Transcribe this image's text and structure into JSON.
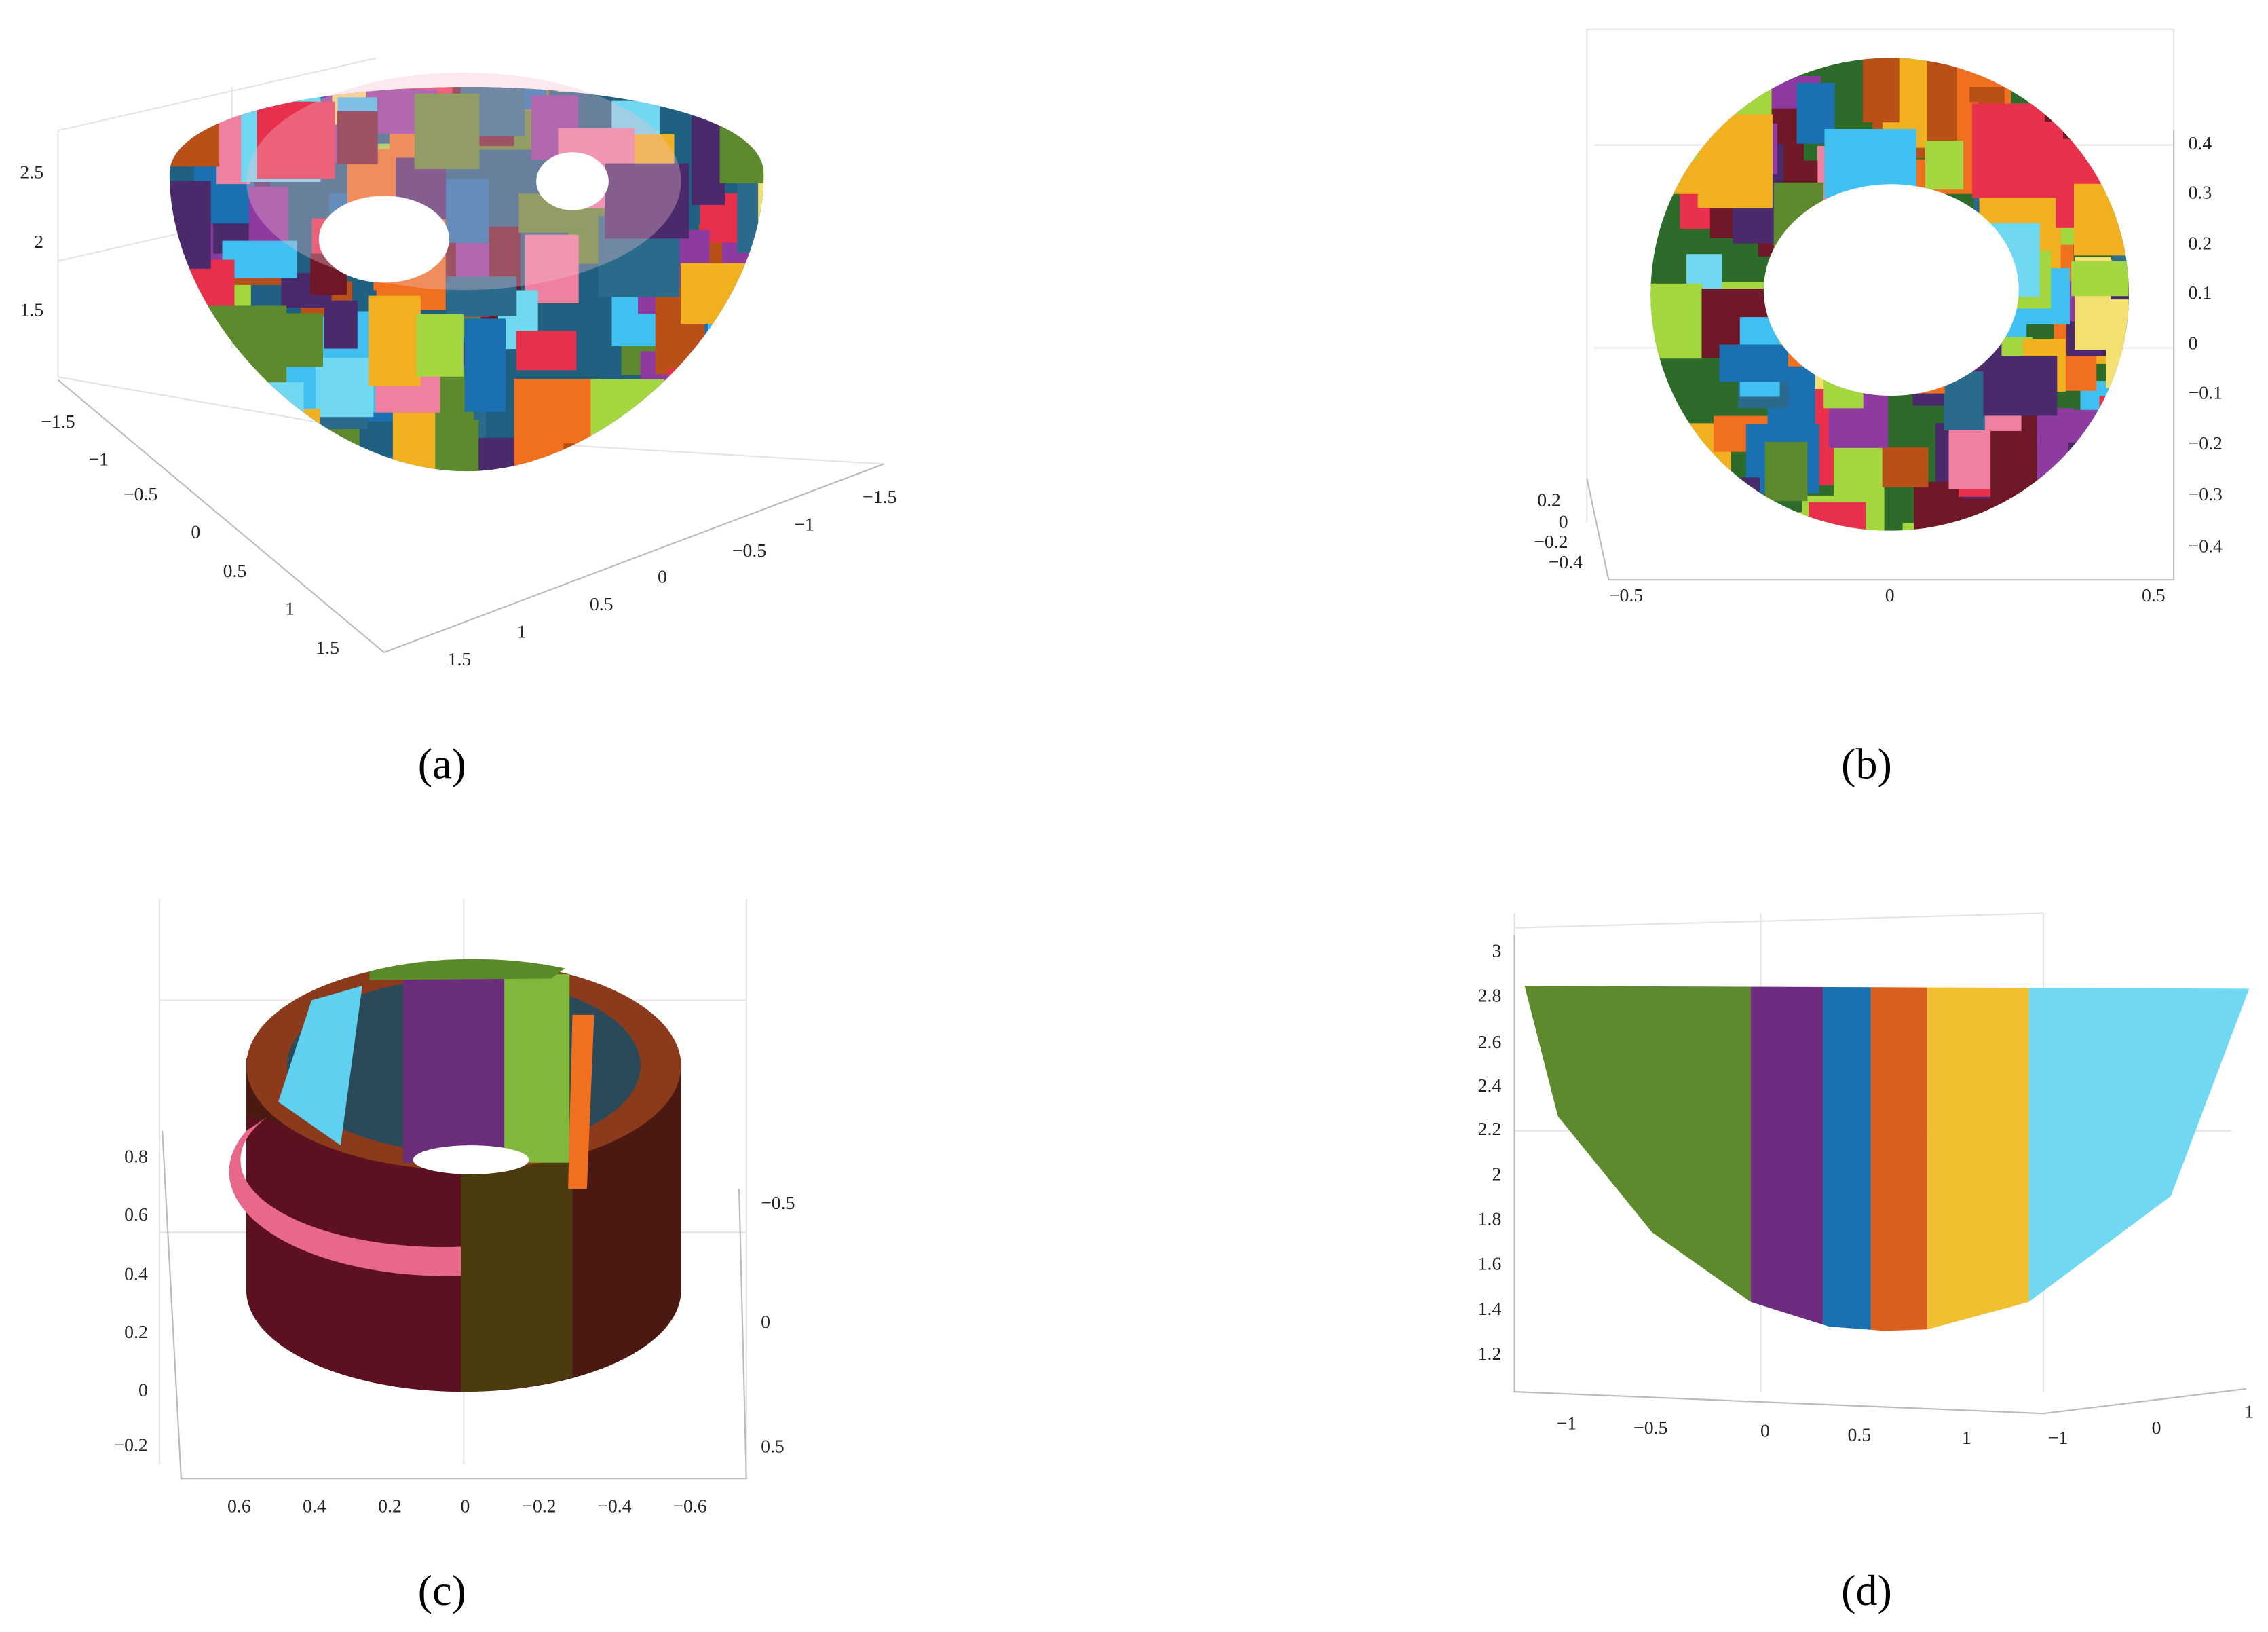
{
  "panels": [
    {
      "caption": "(a)",
      "z_ticks": [
        "2.5",
        "2",
        "1.5"
      ],
      "x_ticks": [
        "−1.5",
        "−1",
        "−0.5",
        "0",
        "0.5",
        "1",
        "1.5"
      ],
      "y_ticks": [
        "−1.5",
        "−1",
        "−0.5",
        "0",
        "0.5",
        "1",
        "1.5"
      ]
    },
    {
      "caption": "(b)",
      "z_ticks": [
        "0.4",
        "0.3",
        "0.2",
        "0.1",
        "0",
        "−0.1",
        "−0.2",
        "−0.3",
        "−0.4"
      ],
      "y_ticks": [
        "0.2",
        "0",
        "−0.2",
        "−0.4"
      ],
      "x_ticks": [
        "−0.5",
        "0",
        "0.5"
      ]
    },
    {
      "caption": "(c)",
      "z_ticks": [
        "0.8",
        "0.6",
        "0.4",
        "0.2",
        "0",
        "−0.2"
      ],
      "y_ticks": [
        "−0.5",
        "0",
        "0.5"
      ],
      "x_ticks": [
        "0.6",
        "0.4",
        "0.2",
        "0",
        "−0.2",
        "−0.4",
        "−0.6"
      ]
    },
    {
      "caption": "(d)",
      "z_ticks": [
        "3",
        "2.8",
        "2.6",
        "2.4",
        "2.2",
        "2",
        "1.8",
        "1.6",
        "1.4",
        "1.2"
      ],
      "x_ticks": [
        "−1",
        "−0.5",
        "0",
        "0.5",
        "1"
      ],
      "y_ticks": [
        "−1",
        "0",
        "1"
      ]
    }
  ]
}
